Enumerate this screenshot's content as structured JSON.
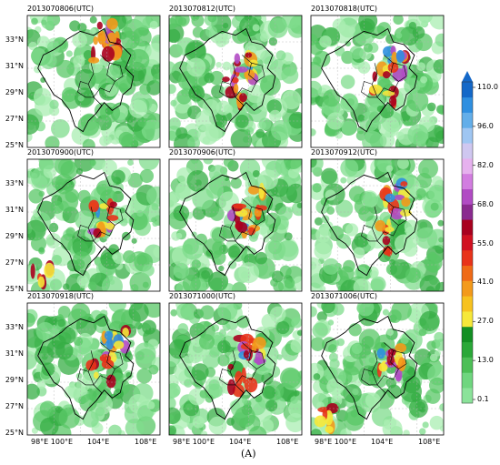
{
  "figure_label": "(A)",
  "panels": [
    {
      "title": "2013070806(UTC)"
    },
    {
      "title": "2013070812(UTC)"
    },
    {
      "title": "2013070818(UTC)"
    },
    {
      "title": "2013070900(UTC)"
    },
    {
      "title": "2013070906(UTC)"
    },
    {
      "title": "2013070912(UTC)"
    },
    {
      "title": "2013070918(UTC)"
    },
    {
      "title": "2013071000(UTC)"
    },
    {
      "title": "2013071006(UTC)"
    }
  ],
  "lat_ticks": [
    "33°N",
    "31°N",
    "29°N",
    "27°N",
    "25°N"
  ],
  "lon_ticks": [
    "98°E",
    "100°E",
    "104°E",
    "108°E"
  ],
  "colorbar": {
    "labels": [
      "110.0",
      "96.0",
      "82.0",
      "68.0",
      "55.0",
      "41.0",
      "27.0",
      "13.0",
      "0.1"
    ],
    "colors": [
      "#8be39a",
      "#6fd67f",
      "#4cbf56",
      "#2aa838",
      "#138f23",
      "#f6e83a",
      "#f7c21f",
      "#f39a1b",
      "#ef6a16",
      "#e8331a",
      "#d11020",
      "#a8001e",
      "#8a2a8f",
      "#b14bc4",
      "#d27de0",
      "#e6b1ee",
      "#cfc7f0",
      "#9fc6f2",
      "#63aee9",
      "#2f8fe0",
      "#1468c8"
    ]
  }
}
